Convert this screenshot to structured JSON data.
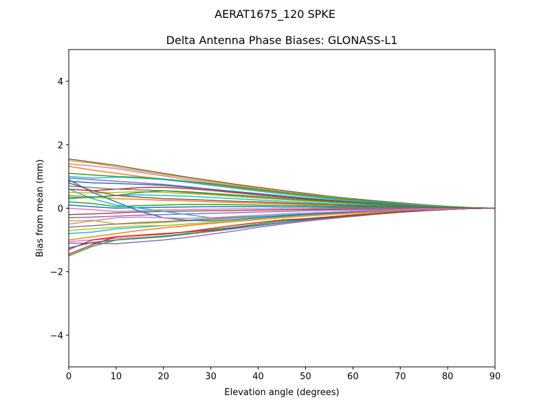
{
  "figure": {
    "suptitle": "AERAT1675_120   SPKE"
  },
  "chart_data": {
    "type": "line",
    "title": "Delta Antenna Phase Biases: GLONASS-L1",
    "xlabel": "Elevation angle (degrees)",
    "ylabel": "Bias from mean (mm)",
    "xlim": [
      0,
      90
    ],
    "ylim": [
      -5,
      5
    ],
    "x_ticks": [
      0,
      10,
      20,
      30,
      40,
      50,
      60,
      70,
      80,
      90
    ],
    "y_ticks": [
      -4,
      -2,
      0,
      2,
      4
    ],
    "y_tick_labels": [
      "−4",
      "−2",
      "0",
      "2",
      "4"
    ],
    "grid": false,
    "legend": "none",
    "x": [
      0,
      5,
      10,
      15,
      20,
      25,
      30,
      35,
      40,
      45,
      50,
      55,
      60,
      65,
      70,
      75,
      80,
      85,
      90
    ],
    "series": [
      {
        "color": "#8c564b",
        "values": [
          1.55,
          1.45,
          1.35,
          1.22,
          1.1,
          0.98,
          0.87,
          0.76,
          0.66,
          0.56,
          0.47,
          0.38,
          0.3,
          0.23,
          0.17,
          0.11,
          0.06,
          0.02,
          0.0
        ]
      },
      {
        "color": "#bcbd22",
        "values": [
          1.5,
          1.42,
          1.3,
          1.18,
          1.06,
          0.95,
          0.84,
          0.73,
          0.63,
          0.53,
          0.44,
          0.36,
          0.28,
          0.21,
          0.15,
          0.1,
          0.05,
          0.02,
          0.0
        ]
      },
      {
        "color": "#e377c2",
        "values": [
          1.4,
          1.33,
          1.25,
          1.13,
          1.02,
          0.9,
          0.8,
          0.7,
          0.6,
          0.51,
          0.42,
          0.34,
          0.27,
          0.2,
          0.14,
          0.09,
          0.05,
          0.02,
          0.0
        ]
      },
      {
        "color": "#ff7f0e",
        "values": [
          1.32,
          1.2,
          1.1,
          1.0,
          0.92,
          0.84,
          0.75,
          0.66,
          0.57,
          0.48,
          0.4,
          0.32,
          0.25,
          0.19,
          0.13,
          0.08,
          0.04,
          0.01,
          0.0
        ]
      },
      {
        "color": "#2ca02c",
        "values": [
          1.1,
          1.05,
          1.0,
          0.97,
          0.92,
          0.85,
          0.77,
          0.68,
          0.59,
          0.5,
          0.42,
          0.34,
          0.27,
          0.2,
          0.14,
          0.09,
          0.05,
          0.02,
          0.0
        ]
      },
      {
        "color": "#17becf",
        "values": [
          1.0,
          0.95,
          0.98,
          0.95,
          0.9,
          0.82,
          0.72,
          0.63,
          0.54,
          0.45,
          0.37,
          0.3,
          0.23,
          0.17,
          0.12,
          0.08,
          0.04,
          0.01,
          0.0
        ]
      },
      {
        "color": "#9467bd",
        "values": [
          0.95,
          0.9,
          0.85,
          0.8,
          0.75,
          0.68,
          0.6,
          0.52,
          0.45,
          0.38,
          0.31,
          0.25,
          0.19,
          0.14,
          0.1,
          0.06,
          0.03,
          0.01,
          0.0
        ]
      },
      {
        "color": "#1f77b4",
        "values": [
          0.85,
          0.8,
          0.78,
          0.75,
          0.72,
          0.66,
          0.6,
          0.53,
          0.46,
          0.39,
          0.32,
          0.26,
          0.2,
          0.15,
          0.1,
          0.06,
          0.03,
          0.01,
          0.0
        ]
      },
      {
        "color": "#d62728",
        "values": [
          0.6,
          0.55,
          0.6,
          0.65,
          0.66,
          0.62,
          0.56,
          0.49,
          0.42,
          0.35,
          0.29,
          0.23,
          0.18,
          0.13,
          0.09,
          0.05,
          0.03,
          0.01,
          0.0
        ]
      },
      {
        "color": "#7f7f7f",
        "values": [
          0.7,
          0.65,
          0.6,
          0.58,
          0.55,
          0.5,
          0.45,
          0.4,
          0.35,
          0.3,
          0.25,
          0.2,
          0.16,
          0.12,
          0.08,
          0.05,
          0.02,
          0.01,
          0.0
        ]
      },
      {
        "color": "#bcbd22",
        "values": [
          0.5,
          0.48,
          0.5,
          0.52,
          0.5,
          0.46,
          0.42,
          0.37,
          0.32,
          0.27,
          0.22,
          0.18,
          0.14,
          0.1,
          0.07,
          0.04,
          0.02,
          0.01,
          0.0
        ]
      },
      {
        "color": "#17becf",
        "values": [
          0.35,
          0.33,
          0.4,
          0.42,
          0.4,
          0.38,
          0.34,
          0.3,
          0.26,
          0.22,
          0.18,
          0.14,
          0.11,
          0.08,
          0.06,
          0.04,
          0.02,
          0.01,
          0.0
        ]
      },
      {
        "color": "#ff7f0e",
        "values": [
          0.4,
          0.36,
          0.3,
          0.28,
          0.25,
          0.23,
          0.2,
          0.18,
          0.16,
          0.14,
          0.12,
          0.1,
          0.08,
          0.06,
          0.04,
          0.03,
          0.01,
          0.0,
          0.0
        ]
      },
      {
        "color": "#2ca02c",
        "values": [
          0.2,
          0.15,
          0.05,
          0.08,
          0.1,
          0.12,
          0.12,
          0.11,
          0.1,
          0.09,
          0.08,
          0.06,
          0.05,
          0.04,
          0.03,
          0.02,
          0.01,
          0.0,
          0.0
        ]
      },
      {
        "color": "#1f77b4",
        "values": [
          0.1,
          0.05,
          0.0,
          0.02,
          0.03,
          0.04,
          0.05,
          0.05,
          0.05,
          0.04,
          0.04,
          0.03,
          0.03,
          0.02,
          0.01,
          0.01,
          0.0,
          0.0,
          0.0
        ]
      },
      {
        "color": "#e377c2",
        "values": [
          0.0,
          -0.05,
          -0.1,
          -0.08,
          -0.05,
          -0.04,
          -0.03,
          -0.02,
          -0.02,
          -0.01,
          -0.01,
          0.0,
          0.0,
          0.0,
          0.0,
          0.0,
          0.0,
          0.0,
          0.0
        ]
      },
      {
        "color": "#8c564b",
        "values": [
          -0.2,
          -0.18,
          -0.15,
          -0.12,
          -0.1,
          -0.09,
          -0.08,
          -0.07,
          -0.06,
          -0.05,
          -0.04,
          -0.03,
          -0.02,
          -0.02,
          -0.01,
          -0.01,
          0.0,
          0.0,
          0.0
        ]
      },
      {
        "color": "#9467bd",
        "values": [
          -0.3,
          -0.28,
          -0.25,
          -0.22,
          -0.2,
          -0.18,
          -0.16,
          -0.14,
          -0.12,
          -0.1,
          -0.08,
          -0.06,
          -0.05,
          -0.04,
          -0.03,
          -0.02,
          -0.01,
          0.0,
          0.0
        ]
      },
      {
        "color": "#bcbd22",
        "values": [
          -0.4,
          -0.38,
          -0.5,
          -0.48,
          -0.45,
          -0.4,
          -0.36,
          -0.31,
          -0.27,
          -0.23,
          -0.19,
          -0.15,
          -0.12,
          -0.09,
          -0.06,
          -0.04,
          -0.02,
          -0.01,
          0.0
        ]
      },
      {
        "color": "#7f7f7f",
        "values": [
          -0.6,
          -0.55,
          -0.5,
          -0.45,
          -0.42,
          -0.38,
          -0.34,
          -0.3,
          -0.26,
          -0.22,
          -0.18,
          -0.14,
          -0.11,
          -0.08,
          -0.06,
          -0.04,
          -0.02,
          -0.01,
          0.0
        ]
      },
      {
        "color": "#17becf",
        "values": [
          -0.8,
          -0.75,
          -0.65,
          -0.6,
          -0.55,
          -0.5,
          -0.45,
          -0.4,
          -0.35,
          -0.29,
          -0.24,
          -0.19,
          -0.15,
          -0.11,
          -0.08,
          -0.05,
          -0.03,
          -0.01,
          0.0
        ]
      },
      {
        "color": "#ff7f0e",
        "values": [
          -1.0,
          -0.9,
          -0.8,
          -0.7,
          -0.62,
          -0.55,
          -0.48,
          -0.42,
          -0.36,
          -0.3,
          -0.25,
          -0.2,
          -0.16,
          -0.12,
          -0.08,
          -0.05,
          -0.03,
          -0.01,
          0.0
        ]
      },
      {
        "color": "#e377c2",
        "values": [
          -1.05,
          -1.0,
          -0.95,
          -0.92,
          -0.88,
          -0.82,
          -0.74,
          -0.65,
          -0.55,
          -0.46,
          -0.38,
          -0.3,
          -0.24,
          -0.18,
          -0.12,
          -0.08,
          -0.04,
          -0.01,
          0.0
        ]
      },
      {
        "color": "#9467bd",
        "values": [
          -1.1,
          -1.1,
          -1.12,
          -1.06,
          -1.0,
          -0.92,
          -0.82,
          -0.72,
          -0.6,
          -0.5,
          -0.41,
          -0.33,
          -0.26,
          -0.19,
          -0.13,
          -0.08,
          -0.04,
          -0.01,
          0.0
        ]
      },
      {
        "color": "#d62728",
        "values": [
          -1.3,
          -1.0,
          -0.9,
          -0.85,
          -0.8,
          -0.75,
          -0.68,
          -0.6,
          -0.5,
          -0.4,
          -0.33,
          -0.27,
          -0.21,
          -0.16,
          -0.11,
          -0.07,
          -0.04,
          -0.01,
          0.0
        ]
      },
      {
        "color": "#1f77b4",
        "values": [
          -1.25,
          -1.08,
          -1.0,
          -0.95,
          -0.88,
          -0.8,
          -0.72,
          -0.63,
          -0.54,
          -0.45,
          -0.37,
          -0.3,
          -0.23,
          -0.17,
          -0.12,
          -0.07,
          -0.04,
          -0.01,
          0.0
        ]
      },
      {
        "color": "#2ca02c",
        "values": [
          -1.5,
          -1.2,
          -1.0,
          -0.95,
          -0.9,
          -0.82,
          -0.7,
          -0.6,
          -0.5,
          -0.4,
          -0.35,
          -0.3,
          -0.24,
          -0.18,
          -0.12,
          -0.07,
          -0.04,
          -0.01,
          0.0
        ]
      },
      {
        "color": "#d62728",
        "values": [
          -1.45,
          -1.15,
          -0.9,
          -0.86,
          -0.82,
          -0.74,
          -0.64,
          -0.54,
          -0.45,
          -0.37,
          -0.33,
          -0.28,
          -0.22,
          -0.16,
          -0.11,
          -0.07,
          -0.03,
          -0.01,
          0.0
        ]
      },
      {
        "color": "#bcbd22",
        "values": [
          -0.7,
          -0.65,
          -0.6,
          -0.55,
          -0.55,
          -0.5,
          -0.45,
          -0.4,
          -0.34,
          -0.28,
          -0.23,
          -0.18,
          -0.14,
          -0.1,
          -0.07,
          -0.05,
          -0.02,
          -0.01,
          0.0
        ]
      },
      {
        "color": "#17becf",
        "values": [
          0.6,
          0.3,
          0.1,
          0.0,
          -0.1,
          -0.2,
          -0.3,
          -0.28,
          -0.26,
          -0.22,
          -0.18,
          -0.14,
          -0.11,
          -0.08,
          -0.05,
          -0.03,
          -0.02,
          -0.01,
          0.0
        ]
      },
      {
        "color": "#1f77b4",
        "values": [
          0.9,
          0.5,
          0.2,
          -0.1,
          -0.3,
          -0.38,
          -0.4,
          -0.36,
          -0.3,
          -0.25,
          -0.2,
          -0.16,
          -0.12,
          -0.09,
          -0.06,
          -0.04,
          -0.02,
          -0.01,
          0.0
        ]
      },
      {
        "color": "#e377c2",
        "values": [
          -0.5,
          -0.4,
          -0.3,
          -0.28,
          -0.3,
          -0.32,
          -0.3,
          -0.26,
          -0.22,
          -0.18,
          -0.15,
          -0.12,
          -0.09,
          -0.07,
          -0.05,
          -0.03,
          -0.02,
          -0.01,
          0.0
        ]
      },
      {
        "color": "#2ca02c",
        "values": [
          0.3,
          0.35,
          0.4,
          0.5,
          0.55,
          0.52,
          0.47,
          0.42,
          0.37,
          0.31,
          0.26,
          0.21,
          0.16,
          0.12,
          0.08,
          0.05,
          0.03,
          0.01,
          0.0
        ]
      },
      {
        "color": "#8c564b",
        "values": [
          0.8,
          0.55,
          0.4,
          0.35,
          0.3,
          0.28,
          0.25,
          0.22,
          0.2,
          0.17,
          0.14,
          0.11,
          0.09,
          0.07,
          0.05,
          0.03,
          0.01,
          0.0,
          0.0
        ]
      }
    ]
  }
}
